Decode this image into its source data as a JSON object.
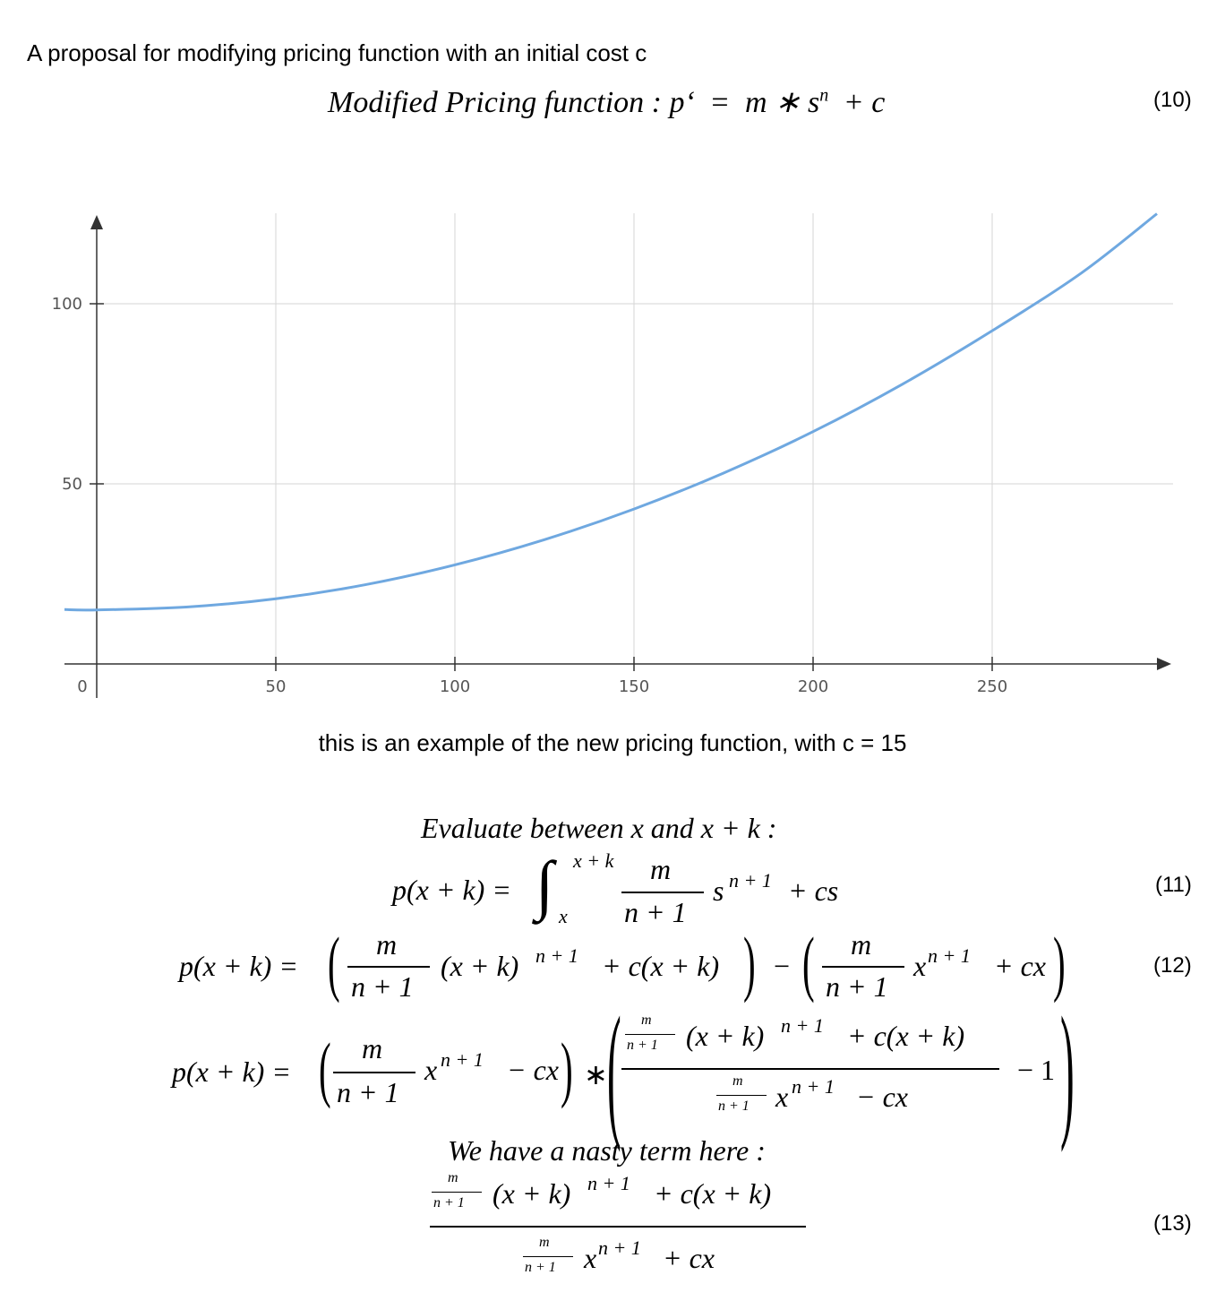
{
  "intro_text": "A proposal for modifying pricing function with an initial cost c",
  "eq10": {
    "lhs": "Modified Pricing function :",
    "p_prime": "p‘",
    "equals": "=",
    "m_times_s": "m ∗ s",
    "exp_n": "n",
    "plus_c": "+  c",
    "number": "(10)"
  },
  "chart_data": {
    "type": "line",
    "title": "",
    "xlabel": "",
    "ylabel": "",
    "x_ticks": [
      0,
      50,
      100,
      150,
      200,
      250
    ],
    "y_ticks": [
      50,
      100
    ],
    "xlim": [
      -9,
      299
    ],
    "ylim": [
      -6,
      126
    ],
    "grid": true,
    "series": [
      {
        "color": "#6fa8e0",
        "x": [
          -9,
          0,
          25,
          50,
          75,
          100,
          125,
          150,
          175,
          200,
          225,
          250,
          275,
          296
        ],
        "y": [
          15.1,
          15,
          15.8,
          18.1,
          22.0,
          27.5,
          34.5,
          43.0,
          53.0,
          64.5,
          77.7,
          92.5,
          108.6,
          125.0
        ]
      }
    ]
  },
  "caption": "this is an example of the new pricing function, with c = 15",
  "eval_heading": "Evaluate between x and x  +  k :",
  "eq11": {
    "lhs": "p(x + k) =",
    "int_upper": "x + k",
    "int_lower": "x",
    "frac_num": "m",
    "frac_den": "n  +  1",
    "s": "s",
    "exp": "n + 1",
    "tail": "+  cs",
    "number": "(11)"
  },
  "eq12": {
    "lhs": "p(x + k) =",
    "frac_num": "m",
    "frac_den": "n  +  1",
    "term1": "(x  +  k)",
    "exp": "n + 1",
    "term1_tail": "+  c(x  +  k)",
    "minus": "−",
    "term2": "x",
    "term2_tail": "+  cx",
    "number": "(12)"
  },
  "eq12b": {
    "lhs": "p(x + k) =",
    "frac_num": "m",
    "frac_den": "n  +  1",
    "x": "x",
    "exp": "n + 1",
    "minus_cx": "−  cx",
    "times": "∗",
    "small_num": "m",
    "small_den": "n + 1",
    "inner_num": "(x  +  k)",
    "inner_num_tail": "+  c(x  +  k)",
    "inner_den": "x",
    "inner_den_tail": "−  cx",
    "minus_one": "−  1"
  },
  "nasty_heading": "We have a nasty term here :",
  "eq13": {
    "small_num": "m",
    "small_den": "n + 1",
    "num_term": "(x  +  k)",
    "exp": "n + 1",
    "num_tail": "+  c(x  +  k)",
    "den_term": "x",
    "den_tail": "+  cx",
    "number": "(13)"
  }
}
